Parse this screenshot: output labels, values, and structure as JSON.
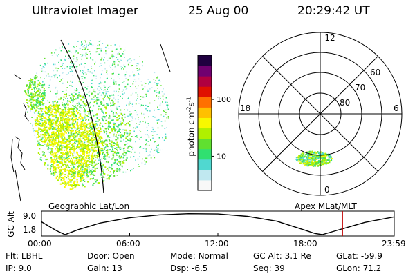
{
  "header": {
    "instrument": "Ultraviolet Imager",
    "date": "25 Aug 00",
    "time": "20:29:42 UT"
  },
  "colorbar": {
    "label": "photon cm",
    "label_sup": "-2",
    "label_mid": "s",
    "label_sup2": "-1",
    "ticks": [
      "100",
      "10"
    ],
    "tick_values": [
      100,
      10
    ],
    "range": [
      2.5,
      600
    ],
    "scale": "log",
    "colors": [
      "#f8f8f8",
      "#c0e8f0",
      "#50d8d0",
      "#30e070",
      "#60e030",
      "#b0f000",
      "#f8f800",
      "#ffc000",
      "#ff7000",
      "#e01000",
      "#b00040",
      "#700070",
      "#200040"
    ]
  },
  "panels": {
    "geo_label": "Geographic Lat/Lon",
    "apex_label": "Apex MLat/MLT"
  },
  "polar": {
    "mlt_labels": [
      "12",
      "18",
      "6",
      "0"
    ],
    "lat_labels": [
      "60",
      "70",
      "80"
    ]
  },
  "timeline": {
    "ylabel": "GC Alt",
    "yticks": [
      "9.0",
      "1.8"
    ],
    "xticks": [
      "00:00",
      "06:00",
      "12:00",
      "18:00",
      "23:59"
    ],
    "marker_time": "20:29",
    "marker_color": "#c00000",
    "curve": [
      {
        "t": 0.0,
        "alt": 6.2
      },
      {
        "t": 1.0,
        "alt": 3.2
      },
      {
        "t": 1.6,
        "alt": 1.8
      },
      {
        "t": 2.5,
        "alt": 3.5
      },
      {
        "t": 4.0,
        "alt": 5.8
      },
      {
        "t": 6.0,
        "alt": 7.6
      },
      {
        "t": 8.0,
        "alt": 8.6
      },
      {
        "t": 10.0,
        "alt": 9.0
      },
      {
        "t": 12.0,
        "alt": 8.9
      },
      {
        "t": 14.0,
        "alt": 8.1
      },
      {
        "t": 16.0,
        "alt": 6.4
      },
      {
        "t": 17.5,
        "alt": 4.0
      },
      {
        "t": 18.6,
        "alt": 2.2
      },
      {
        "t": 19.1,
        "alt": 1.8
      },
      {
        "t": 20.0,
        "alt": 3.1
      },
      {
        "t": 22.0,
        "alt": 6.0
      },
      {
        "t": 24.0,
        "alt": 7.9
      }
    ]
  },
  "meta": [
    [
      {
        "k": "Flt:",
        "v": "LBHL"
      },
      {
        "k": "Door:",
        "v": "Open"
      },
      {
        "k": "Mode:",
        "v": "Normal"
      },
      {
        "k": "GC Alt:",
        "v": "3.1 Re"
      },
      {
        "k": "GLat:",
        "v": "-59.9"
      }
    ],
    [
      {
        "k": "IP:",
        "v": "9.0"
      },
      {
        "k": "Gain:",
        "v": "13"
      },
      {
        "k": "Dsp:",
        "v": "-6.5"
      },
      {
        "k": "Seq:",
        "v": "39"
      },
      {
        "k": "GLon:",
        "v": "71.2"
      }
    ]
  ]
}
